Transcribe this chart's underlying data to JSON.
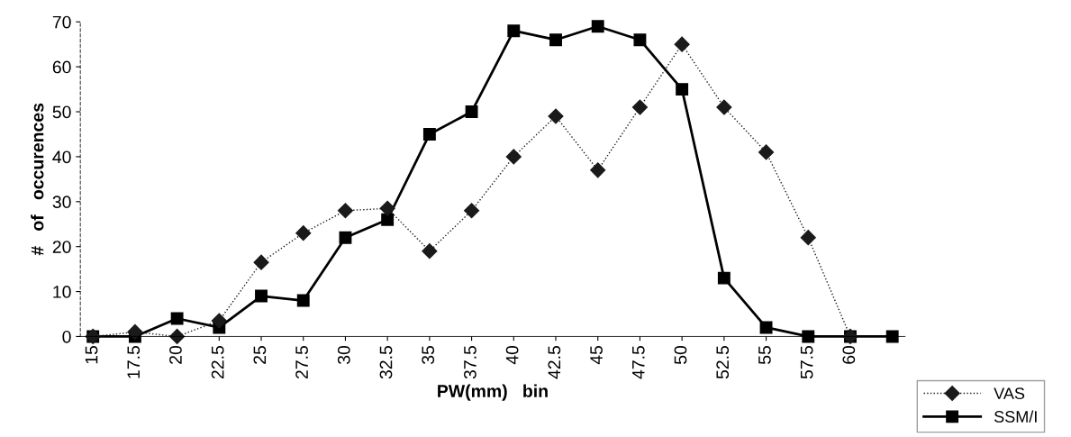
{
  "chart_data": {
    "type": "line",
    "xlabel": "PW(mm)   bin",
    "ylabel": "#   of   occurences",
    "categories": [
      "15",
      "17.5",
      "20",
      "22.5",
      "25",
      "27.5",
      "30",
      "32.5",
      "35",
      "37.5",
      "40",
      "42.5",
      "45",
      "47.5",
      "50",
      "52.5",
      "55",
      "57.5",
      "60",
      null
    ],
    "series": [
      {
        "name": "VAS",
        "color": "#1a1a1a",
        "marker": "diamond",
        "line_style": "dotted",
        "values": [
          0,
          1,
          0,
          3.5,
          16.5,
          23,
          28,
          28.5,
          19,
          28,
          40,
          49,
          37,
          51,
          65,
          51,
          41,
          22,
          0,
          null
        ]
      },
      {
        "name": "SSM/I",
        "color": "#000000",
        "marker": "square",
        "line_style": "solid",
        "values": [
          0,
          0,
          4,
          2,
          9,
          8,
          22,
          26,
          45,
          50,
          68,
          66,
          69,
          66,
          55,
          13,
          2,
          0,
          0,
          0
        ]
      }
    ],
    "ylim": [
      0,
      70
    ],
    "yticks": [
      0,
      10,
      20,
      30,
      40,
      50,
      60,
      70
    ],
    "grid": false,
    "legend": "bottom right"
  }
}
